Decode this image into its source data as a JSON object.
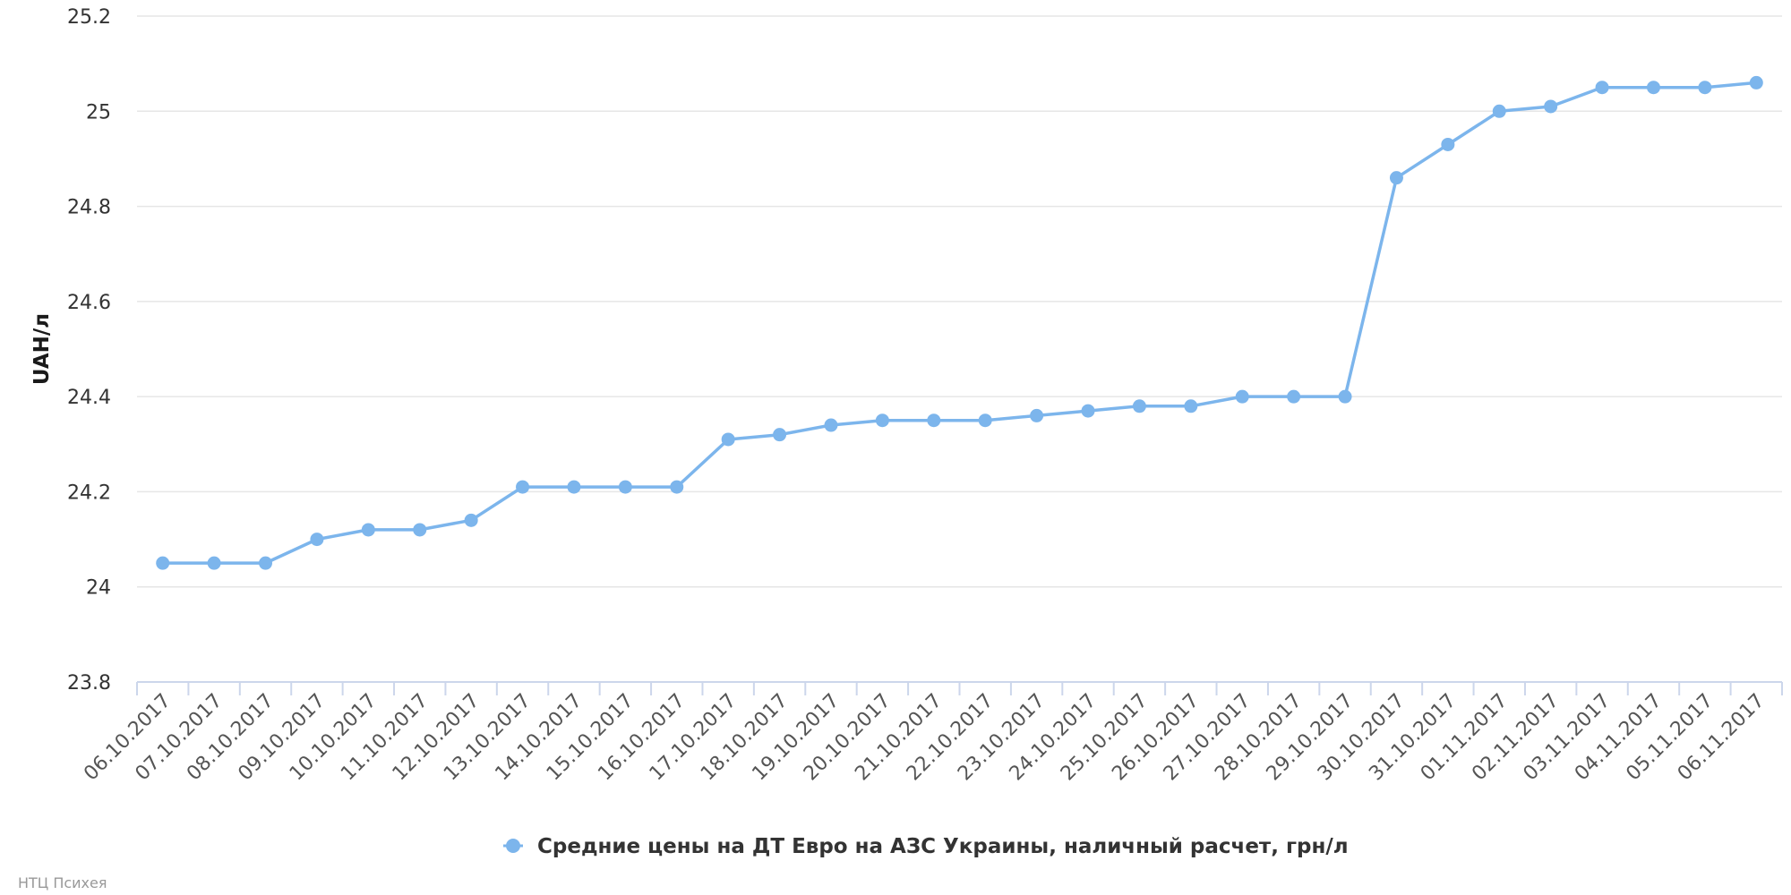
{
  "chart_data": {
    "type": "line",
    "title": "",
    "xlabel": "",
    "ylabel": "UAH/л",
    "ylim": [
      23.8,
      25.2
    ],
    "yticks": [
      23.8,
      24,
      24.2,
      24.4,
      24.6,
      24.8,
      25,
      25.2
    ],
    "grid": true,
    "legend_position": "bottom-center",
    "categories": [
      "06.10.2017",
      "07.10.2017",
      "08.10.2017",
      "09.10.2017",
      "10.10.2017",
      "11.10.2017",
      "12.10.2017",
      "13.10.2017",
      "14.10.2017",
      "15.10.2017",
      "16.10.2017",
      "17.10.2017",
      "18.10.2017",
      "19.10.2017",
      "20.10.2017",
      "21.10.2017",
      "22.10.2017",
      "23.10.2017",
      "24.10.2017",
      "25.10.2017",
      "26.10.2017",
      "27.10.2017",
      "28.10.2017",
      "29.10.2017",
      "30.10.2017",
      "31.10.2017",
      "01.11.2017",
      "02.11.2017",
      "03.11.2017",
      "04.11.2017",
      "05.11.2017",
      "06.11.2017"
    ],
    "series": [
      {
        "name": "Средние цены на ДТ Евро на АЗС Украины, наличный расчет, грн/л",
        "color": "#7cb5ec",
        "values": [
          24.05,
          24.05,
          24.05,
          24.1,
          24.12,
          24.12,
          24.14,
          24.21,
          24.21,
          24.21,
          24.21,
          24.31,
          24.32,
          24.34,
          24.35,
          24.35,
          24.35,
          24.36,
          24.37,
          24.38,
          24.38,
          24.4,
          24.4,
          24.4,
          24.86,
          24.93,
          25.0,
          25.01,
          25.05,
          25.05,
          25.05,
          25.06
        ]
      }
    ]
  },
  "credit": "НТЦ Психея"
}
